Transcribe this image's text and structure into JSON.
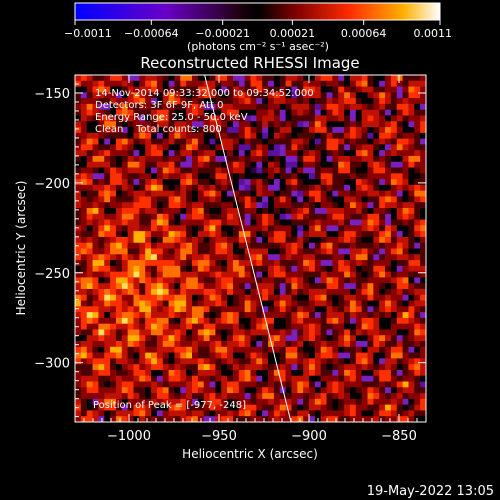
{
  "chart_data": {
    "type": "heatmap",
    "title": "Reconstructed RHESSI Image",
    "xlabel": "Heliocentric X (arcsec)",
    "ylabel": "Heliocentric Y (arcsec)",
    "xlim": [
      -1030,
      -835
    ],
    "ylim": [
      -333,
      -140
    ],
    "xticks": [
      -1000,
      -950,
      -900,
      -850
    ],
    "yticks": [
      -150,
      -200,
      -250,
      -300
    ],
    "colorbar": {
      "label": "(photons cm⁻² s⁻¹ asec⁻²)",
      "ticks": [
        -0.0011,
        -0.00064,
        -0.00021,
        0.00021,
        0.00064,
        0.0011
      ],
      "tick_labels": [
        "-0.0011",
        "-0.00064",
        "-0.00021",
        "0.00021",
        "0.00064",
        "0.0011"
      ],
      "range": [
        -0.0011,
        0.0011
      ]
    },
    "annotations": [
      "14-Nov-2014 09:33:32.000 to 09:34:52.000",
      "Detectors: 3F 6F 9F, Att 0",
      "Energy Range: 25.0 - 50.0 keV",
      "Clean    Total counts: 800"
    ],
    "peak_label": "Position of Peak = [-977, -248]",
    "peak_position": [
      -977,
      -248
    ],
    "limb_line": [
      [
        -958,
        -140
      ],
      [
        -910,
        -333
      ]
    ],
    "timestamp": "19-May-2022 13:05"
  }
}
